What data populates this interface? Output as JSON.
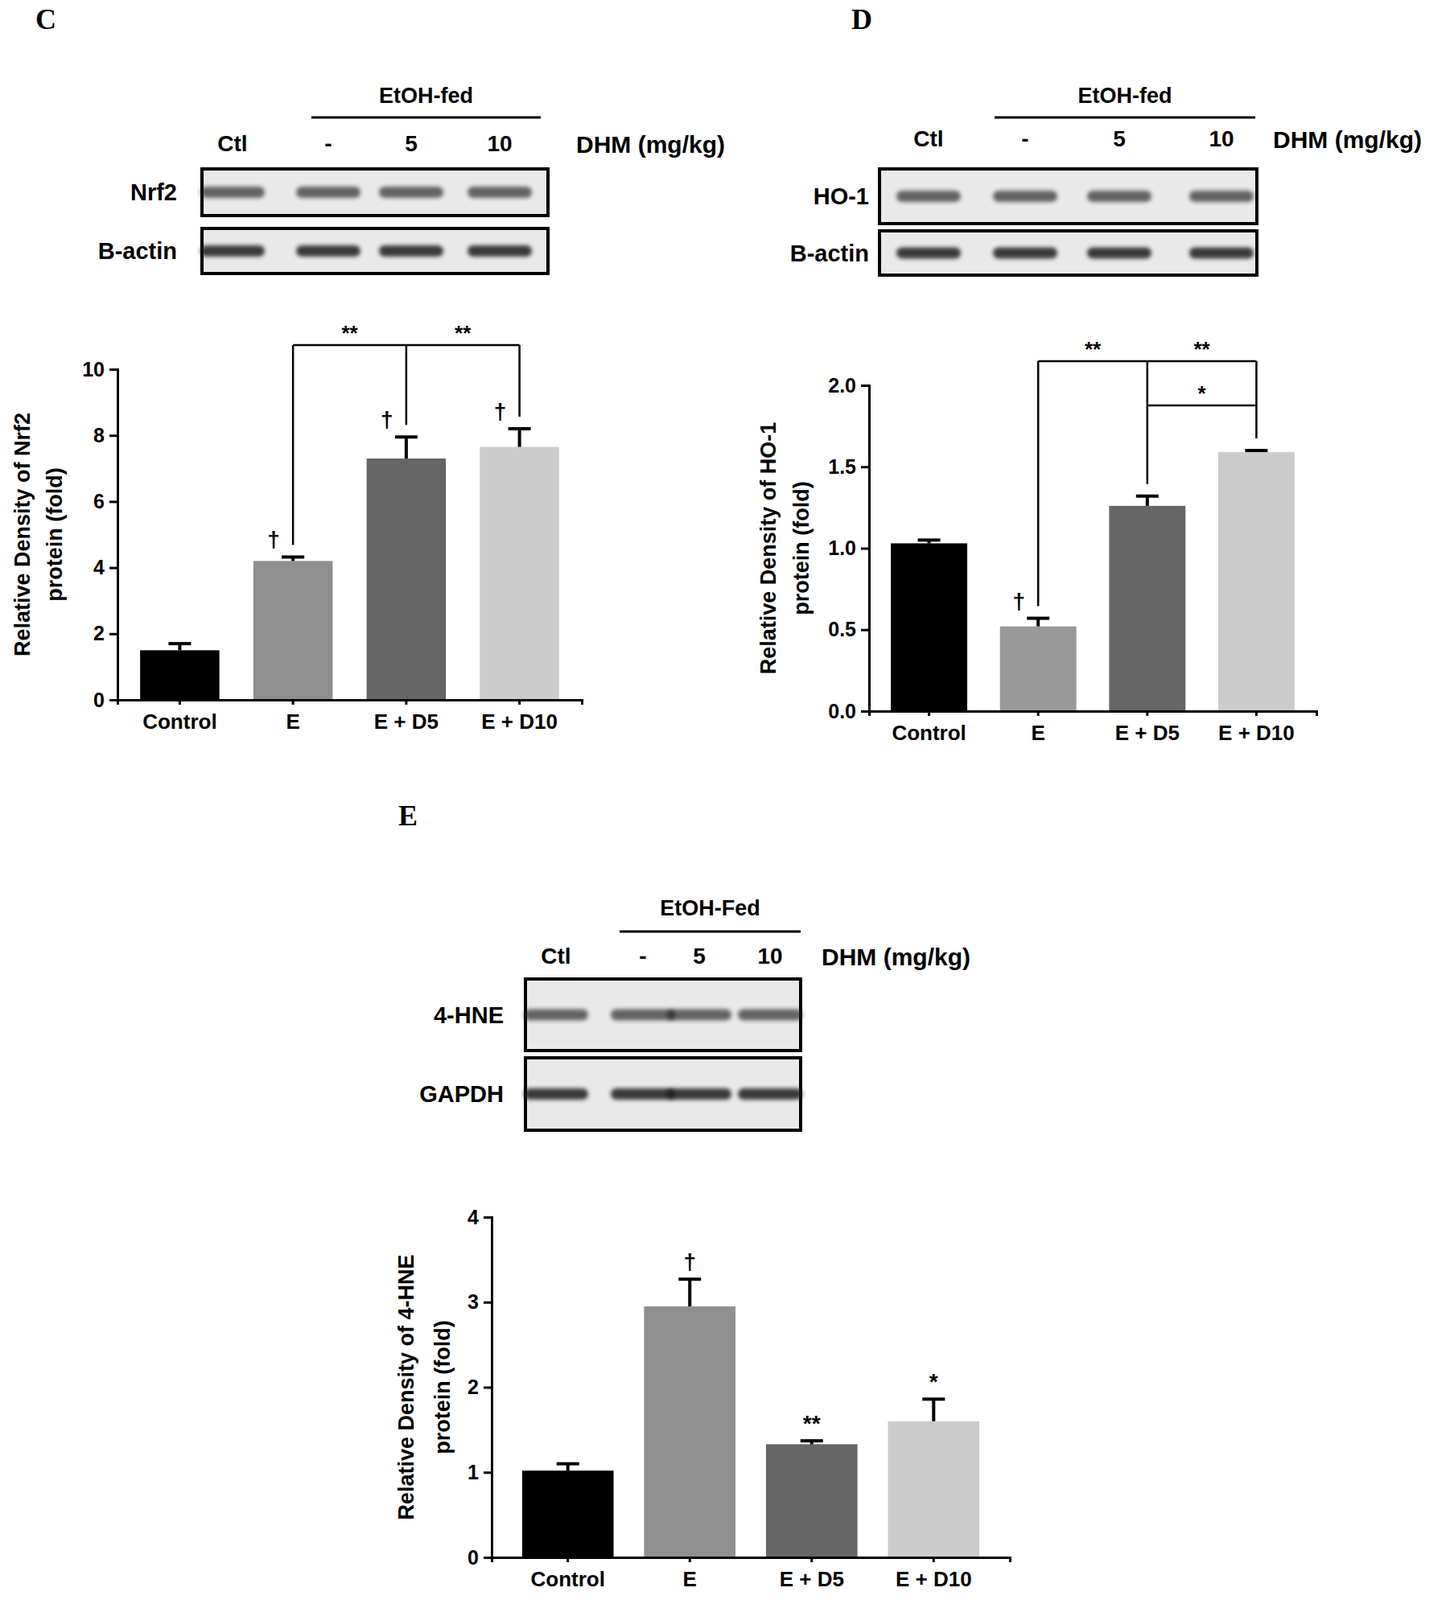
{
  "chart_data": [
    {
      "type": "bar",
      "panel_label": "C",
      "blot": {
        "group_label": "EtOH-fed",
        "lanes": [
          "Ctl",
          "-",
          "5",
          "10"
        ],
        "dose_label": "DHM (mg/kg)",
        "rows": [
          "Nrf2",
          "B-actin"
        ]
      },
      "categories": [
        "Control",
        "E",
        "E + D5",
        "E + D10"
      ],
      "values": [
        1.5,
        4.2,
        7.3,
        7.65
      ],
      "errors": [
        0.2,
        0.12,
        0.65,
        0.55
      ],
      "colors": [
        "#000000",
        "#8f8f8f",
        "#666666",
        "#cccccc"
      ],
      "y_label": [
        "Relative Density of Nrf2",
        "protein (fold)"
      ],
      "ylim": [
        0,
        10
      ],
      "yticks": [
        0,
        2,
        4,
        6,
        8,
        10
      ],
      "symbols": [
        null,
        "†",
        "†",
        "†"
      ],
      "brackets": [
        {
          "from": "E",
          "to": [
            "E + D5",
            "E + D10"
          ],
          "labels": [
            "**",
            "**"
          ]
        }
      ]
    },
    {
      "type": "bar",
      "panel_label": "D",
      "blot": {
        "group_label": "EtOH-fed",
        "lanes": [
          "Ctl",
          "-",
          "5",
          "10"
        ],
        "dose_label": "DHM (mg/kg)",
        "rows": [
          "HO-1",
          "B-actin"
        ]
      },
      "categories": [
        "Control",
        "E",
        "E + D5",
        "E + D10"
      ],
      "values": [
        1.03,
        0.52,
        1.26,
        1.59
      ],
      "errors": [
        0.02,
        0.05,
        0.06,
        0.01
      ],
      "colors": [
        "#000000",
        "#999999",
        "#666666",
        "#cccccc"
      ],
      "y_label": [
        "Relative Density of HO-1",
        "protein (fold)"
      ],
      "ylim": [
        0,
        2
      ],
      "yticks": [
        {
          "value": 0,
          "label": "0.0"
        },
        {
          "value": 0.5,
          "label": "0.5"
        },
        {
          "value": 1,
          "label": "1.0"
        },
        {
          "value": 1.5,
          "label": "1.5"
        },
        {
          "value": 2,
          "label": "2.0"
        }
      ],
      "symbols": [
        null,
        "†",
        null,
        null
      ],
      "brackets": [
        {
          "from": "E",
          "to": [
            "E + D5",
            "E + D10"
          ],
          "labels": [
            "**",
            "**"
          ]
        },
        {
          "from": "E + D5",
          "to": [
            "E + D10"
          ],
          "labels": [
            "*"
          ]
        }
      ]
    },
    {
      "type": "bar",
      "panel_label": "E",
      "blot": {
        "group_label": "EtOH-Fed",
        "lanes": [
          "Ctl",
          "-",
          "5",
          "10"
        ],
        "dose_label": "DHM (mg/kg)",
        "rows": [
          "4-HNE",
          "GAPDH"
        ]
      },
      "categories": [
        "Control",
        "E",
        "E + D5",
        "E + D10"
      ],
      "values": [
        1.02,
        2.95,
        1.33,
        1.6
      ],
      "errors": [
        0.08,
        0.32,
        0.04,
        0.26
      ],
      "colors": [
        "#000000",
        "#8f8f8f",
        "#666666",
        "#cccccc"
      ],
      "y_label": [
        "Relative Density of 4-HNE",
        "protein (fold)"
      ],
      "ylim": [
        0,
        4
      ],
      "yticks": [
        0,
        1,
        2,
        3,
        4
      ],
      "symbols": [
        null,
        "†",
        "**",
        "*"
      ],
      "brackets": []
    }
  ]
}
